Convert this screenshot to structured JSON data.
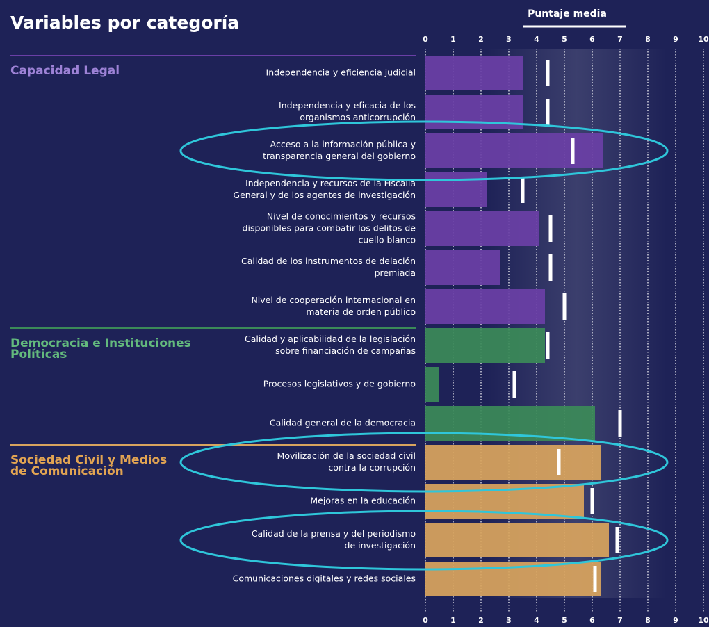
{
  "chart_data": {
    "type": "bar",
    "title": "Variables por categoría",
    "axis_label": "Puntaje media",
    "xlim": [
      0,
      10
    ],
    "xticks": [
      0,
      1,
      2,
      3,
      4,
      5,
      6,
      7,
      8,
      9,
      10
    ],
    "groups": [
      {
        "name": [
          "Capacidad Legal"
        ],
        "color": "#6a3fa6",
        "label_color": "#9d82d6",
        "categories": [
          [
            "Independencia y eficiencia judicial"
          ],
          [
            "Independencia y eficacia de los",
            "organismos anticorrupción"
          ],
          [
            "Acceso a la información pública y",
            "transparencia general del gobierno"
          ],
          [
            "Independencia y recursos de la Fiscalía",
            "General y de los agentes de investigación"
          ],
          [
            "Nivel de conocimientos y recursos",
            "disponibles para combatir los delitos de",
            "cuello blanco"
          ],
          [
            "Calidad de los instrumentos de delación",
            "premiada"
          ],
          [
            "Nivel de cooperación internacional en",
            "materia de orden público"
          ]
        ],
        "values": [
          3.5,
          3.5,
          6.4,
          2.2,
          4.1,
          2.7,
          4.3
        ],
        "means": [
          4.4,
          4.4,
          5.3,
          3.5,
          4.5,
          4.5,
          5.0
        ]
      },
      {
        "name": [
          "Democracia e Instituciones",
          "Políticas"
        ],
        "color": "#3b8a58",
        "label_color": "#63b97d",
        "categories": [
          [
            "Calidad y aplicabilidad de la legislación",
            "sobre financiación de campañas"
          ],
          [
            "Procesos legislativos y de gobierno"
          ],
          [
            "Calidad general de la democracia"
          ]
        ],
        "values": [
          4.3,
          0.5,
          6.1
        ],
        "means": [
          4.4,
          3.2,
          7.0
        ]
      },
      {
        "name": [
          "Sociedad Civil y Medios",
          "de Comunicación"
        ],
        "color": "#d8a45e",
        "label_color": "#e2a452",
        "categories": [
          [
            "Movilización de la sociedad civil",
            "contra la corrupción"
          ],
          [
            "Mejoras en la educación"
          ],
          [
            "Calidad de la prensa y del periodismo",
            "de investigación"
          ],
          [
            "Comunicaciones digitales y redes sociales"
          ]
        ],
        "values": [
          6.3,
          5.7,
          6.6,
          6.3
        ],
        "means": [
          4.8,
          6.0,
          6.9,
          6.1
        ]
      }
    ]
  }
}
